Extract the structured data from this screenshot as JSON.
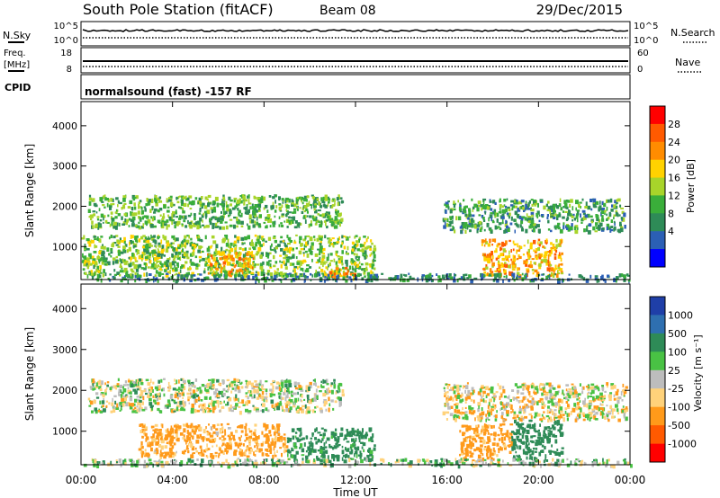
{
  "header": {
    "title": "South Pole Station (fitACF)",
    "beam": "Beam 08",
    "date": "29/Dec/2015"
  },
  "panels": {
    "nsky": {
      "label": "N.Sky",
      "ticks": [
        "10^5",
        "10^0"
      ]
    },
    "nsearch": {
      "label": "N.Search",
      "ticks": [
        "10^5",
        "10^0"
      ]
    },
    "freq": {
      "label_lines": [
        "Freq.",
        "[MHz]"
      ],
      "ticks": [
        "18",
        "8"
      ]
    },
    "nave": {
      "label": "Nave",
      "ticks": [
        "60",
        "0"
      ]
    },
    "cpid": {
      "label": "CPID",
      "text": "normalsound (fast) -157 RF"
    }
  },
  "colorbars": {
    "power": {
      "label": "Power [dB]",
      "ticks": [
        "28",
        "24",
        "20",
        "16",
        "12",
        "8",
        "4"
      ],
      "colors": [
        "#ff0000",
        "#ff5a00",
        "#ff8c00",
        "#ffd200",
        "#a8d42a",
        "#3aae3a",
        "#2e8b57",
        "#2b5fb5",
        "#0000ff"
      ]
    },
    "velocity": {
      "label": "Velocity [m s⁻¹]",
      "ticks": [
        "1000",
        "500",
        "100",
        "25",
        "-25",
        "-100",
        "-500",
        "-1000"
      ],
      "colors": [
        "#1f3fa8",
        "#2e6fb0",
        "#2e8b57",
        "#49c244",
        "#bdbdbd",
        "#ffd27a",
        "#ff9a1a",
        "#ff5a00",
        "#ff0000"
      ]
    }
  },
  "chart_data": [
    {
      "type": "heatmap",
      "name": "power",
      "xlabel": "Time UT",
      "ylabel": "Slant Range [km]",
      "x_ticks": [
        "00:00",
        "04:00",
        "08:00",
        "12:00",
        "16:00",
        "20:00",
        "00:00"
      ],
      "xlim_hours": [
        0,
        24
      ],
      "ylim": [
        180,
        4600
      ],
      "y_ticks": [
        1000,
        2000,
        3000,
        4000
      ],
      "colorbar_label": "Power [dB]",
      "echo_bands": [
        {
          "t_start": 0.3,
          "t_end": 11.4,
          "range_low": 1500,
          "range_high": 2300,
          "power_db": 12
        },
        {
          "t_start": 0.0,
          "t_end": 12.8,
          "range_low": 300,
          "range_high": 1300,
          "power_db": 14
        },
        {
          "t_start": 5.5,
          "t_end": 7.5,
          "range_low": 300,
          "range_high": 900,
          "power_db": 22
        },
        {
          "t_start": 10.6,
          "t_end": 12.0,
          "range_low": 250,
          "range_high": 500,
          "power_db": 24
        },
        {
          "t_start": 15.8,
          "t_end": 23.8,
          "range_low": 1400,
          "range_high": 2200,
          "power_db": 10
        },
        {
          "t_start": 17.5,
          "t_end": 21.0,
          "range_low": 300,
          "range_high": 1200,
          "power_db": 22
        },
        {
          "t_start": 0.0,
          "t_end": 24.0,
          "range_low": 180,
          "range_high": 350,
          "power_db": 8
        }
      ]
    },
    {
      "type": "heatmap",
      "name": "velocity",
      "xlabel": "Time UT",
      "ylabel": "Slant Range [km]",
      "x_ticks": [
        "00:00",
        "04:00",
        "08:00",
        "12:00",
        "16:00",
        "20:00",
        "00:00"
      ],
      "xlim_hours": [
        0,
        24
      ],
      "ylim": [
        180,
        4600
      ],
      "y_ticks": [
        1000,
        2000,
        3000,
        4000
      ],
      "colorbar_label": "Velocity [m s⁻¹]",
      "echo_bands": [
        {
          "t_start": 0.3,
          "t_end": 11.4,
          "range_low": 1500,
          "range_high": 2300,
          "velocity": 0
        },
        {
          "t_start": 2.5,
          "t_end": 9.0,
          "range_low": 400,
          "range_high": 1200,
          "velocity": -150
        },
        {
          "t_start": 9.0,
          "t_end": 12.8,
          "range_low": 300,
          "range_high": 1100,
          "velocity": 200
        },
        {
          "t_start": 15.8,
          "t_end": 23.8,
          "range_low": 1300,
          "range_high": 2200,
          "velocity": -50
        },
        {
          "t_start": 16.5,
          "t_end": 18.8,
          "range_low": 300,
          "range_high": 1200,
          "velocity": -200
        },
        {
          "t_start": 18.8,
          "t_end": 21.0,
          "range_low": 300,
          "range_high": 1300,
          "velocity": 300
        },
        {
          "t_start": 0.0,
          "t_end": 24.0,
          "range_low": 180,
          "range_high": 350,
          "velocity": 50
        }
      ]
    }
  ]
}
